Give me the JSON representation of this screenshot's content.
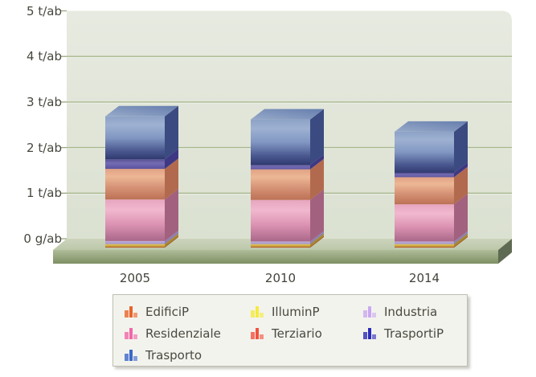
{
  "chart_data": {
    "type": "bar",
    "variant": "3d-stacked-column",
    "title": "",
    "categories": [
      "2005",
      "2010",
      "2014"
    ],
    "unit_per_inhabitant": "t/ab",
    "y_ticks": [
      "5 t/ab",
      "4 t/ab",
      "3 t/ab",
      "2 t/ab",
      "1 t/ab",
      "0 g/ab"
    ],
    "y_tick_values": [
      5,
      4,
      3,
      2,
      1,
      0
    ],
    "ylim": [
      0,
      5
    ],
    "grid": true,
    "legend_position": "bottom",
    "series": [
      {
        "name": "EdificiP",
        "color": "#e96429",
        "values": [
          0.02,
          0.02,
          0.02
        ]
      },
      {
        "name": "IlluminP",
        "color": "#f4ea3d",
        "values": [
          0.06,
          0.06,
          0.06
        ]
      },
      {
        "name": "Industria",
        "color": "#c9a9f1",
        "values": [
          0.07,
          0.06,
          0.06
        ]
      },
      {
        "name": "Residenziale",
        "color": "#f166a8",
        "values": [
          0.95,
          0.95,
          0.85
        ]
      },
      {
        "name": "Terziario",
        "color": "#f2523e",
        "values": [
          0.7,
          0.7,
          0.62
        ]
      },
      {
        "name": "TrasportiP",
        "color": "#2b2bba",
        "values": [
          0.22,
          0.1,
          0.1
        ]
      },
      {
        "name": "Trasporto",
        "color": "#3b68c8",
        "values": [
          0.98,
          1.04,
          0.94
        ]
      }
    ],
    "totals_t_ab": [
      3.0,
      2.93,
      2.65
    ]
  }
}
